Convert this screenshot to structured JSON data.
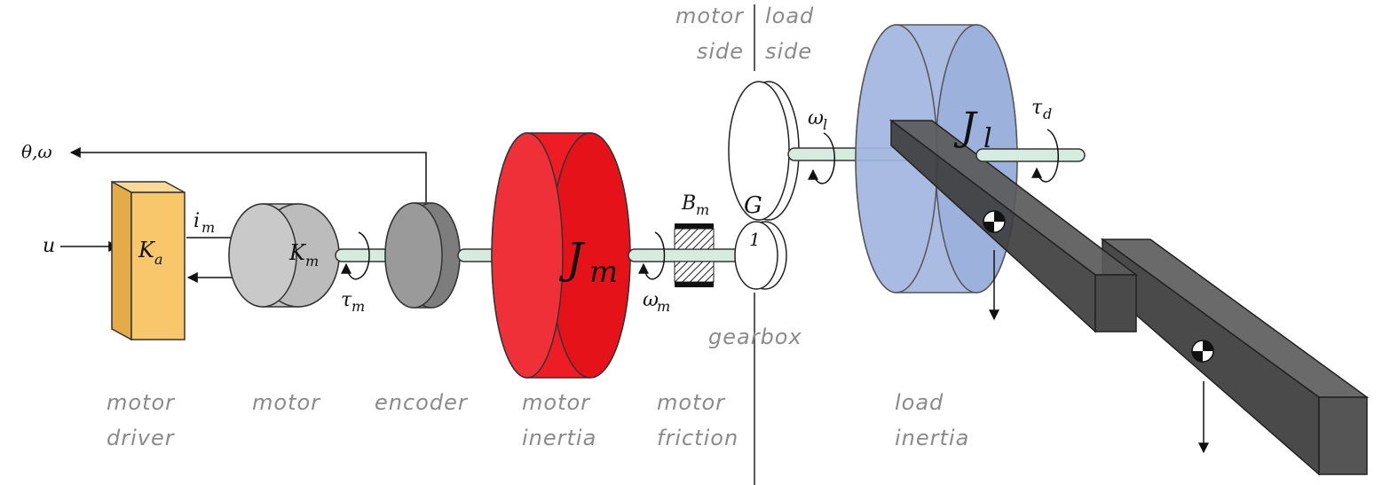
{
  "labels": {
    "theta_omega": "θ,ω",
    "u": "u",
    "Ka": {
      "main": "K",
      "sub": "a"
    },
    "im": {
      "main": "i",
      "sub": "m"
    },
    "Km": {
      "main": "K",
      "sub": "m"
    },
    "tau_m": {
      "main": "τ",
      "sub": "m"
    },
    "Jm": {
      "main": "J",
      "sub": "m"
    },
    "Bm": {
      "main": "B",
      "sub": "m"
    },
    "omega_m": {
      "main": "ω",
      "sub": "m"
    },
    "G": "G",
    "one": "1",
    "omega_l": {
      "main": "ω",
      "sub": "l"
    },
    "Jl": {
      "main": "J",
      "sub": "l"
    },
    "tau_d": {
      "main": "τ",
      "sub": "d"
    }
  },
  "captions": {
    "motor_driver": [
      "motor",
      "driver"
    ],
    "motor": [
      "motor"
    ],
    "encoder": [
      "encoder"
    ],
    "motor_inertia": [
      "motor",
      "inertia"
    ],
    "motor_friction": [
      "motor",
      "friction"
    ],
    "gearbox": [
      "gearbox"
    ],
    "load_inertia": [
      "load",
      "inertia"
    ],
    "motor_side": [
      "motor",
      "side"
    ],
    "load_side": [
      "load",
      "side"
    ]
  },
  "colors": {
    "driver": "#f9c76b",
    "motor": "#c4c4c4",
    "encoder": "#8e8e8e",
    "motor_inertia": "#ee1c24",
    "shaft": "#d6ece0",
    "load_inertia": "#8fa5d8",
    "arm": "#4a4a4a"
  }
}
